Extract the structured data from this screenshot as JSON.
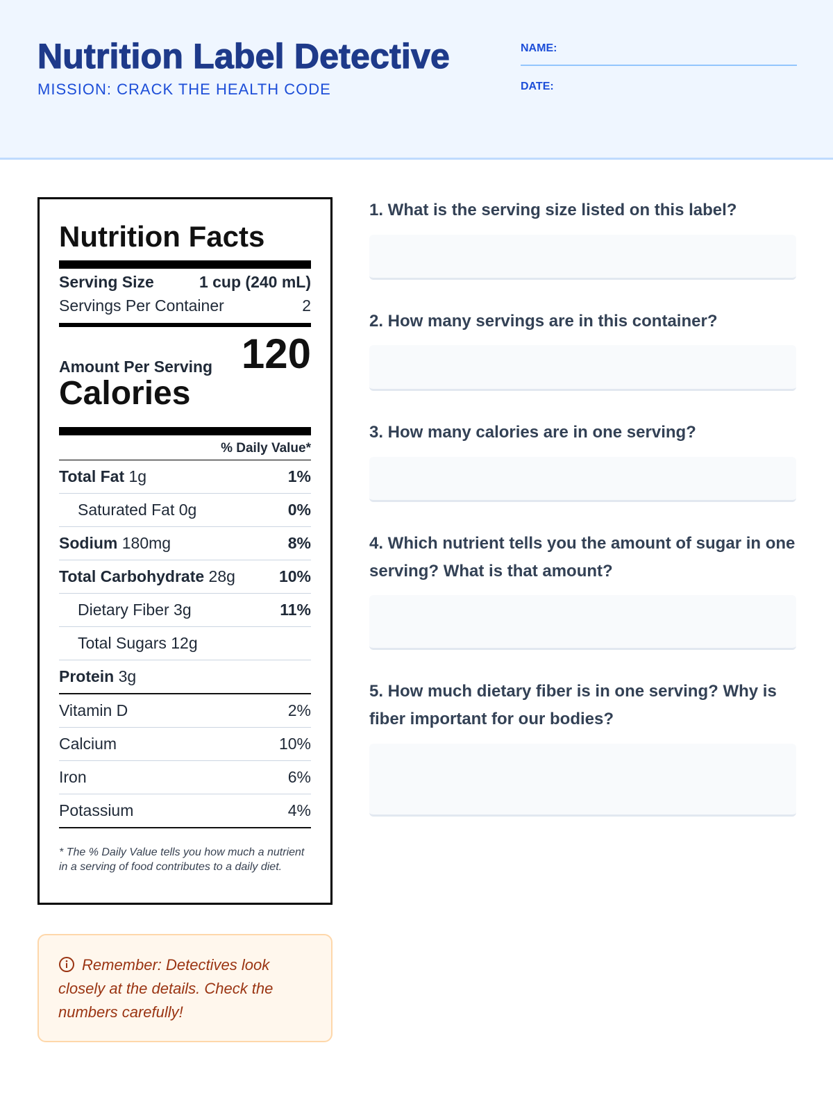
{
  "header": {
    "title": "Nutrition Label Detective",
    "subtitle": "MISSION: CRACK THE HEALTH CODE",
    "name_label": "NAME:",
    "date_label": "DATE:"
  },
  "label": {
    "title": "Nutrition Facts",
    "serving_size_label": "Serving Size",
    "serving_size_value": "1 cup (240 mL)",
    "servings_label": "Servings Per Container",
    "servings_value": "2",
    "amount_label": "Amount Per Serving",
    "calories_label": "Calories",
    "calories_value": "120",
    "dv_header": "% Daily Value*",
    "nutrients": [
      {
        "name": "Total Fat",
        "amount": "1g",
        "dv": "1%"
      },
      {
        "name": "Saturated Fat",
        "amount": "0g",
        "dv": "0%"
      },
      {
        "name": "Sodium",
        "amount": "180mg",
        "dv": "8%"
      },
      {
        "name": "Total Carbohydrate",
        "amount": "28g",
        "dv": "10%"
      },
      {
        "name": "Dietary Fiber",
        "amount": "3g",
        "dv": "11%"
      },
      {
        "name": "Total Sugars",
        "amount": "12g",
        "dv": ""
      },
      {
        "name": "Protein",
        "amount": "3g",
        "dv": ""
      }
    ],
    "vitamins": [
      {
        "name": "Vitamin D",
        "dv": "2%"
      },
      {
        "name": "Calcium",
        "dv": "10%"
      },
      {
        "name": "Iron",
        "dv": "6%"
      },
      {
        "name": "Potassium",
        "dv": "4%"
      }
    ],
    "footnote": "* The % Daily Value tells you how much a nutrient in a serving of food contributes to a daily diet."
  },
  "tip": {
    "icon": "info-icon",
    "text": "Remember: Detectives look closely at the details. Check the numbers carefully!"
  },
  "questions": [
    "1. What is the serving size listed on this label?",
    "2. How many servings are in this container?",
    "3. How many calories are in one serving?",
    "4. Which nutrient tells you the amount of sugar in one serving? What is that amount?",
    "5. How much dietary fiber is in one serving? Why is fiber important for our bodies?"
  ]
}
